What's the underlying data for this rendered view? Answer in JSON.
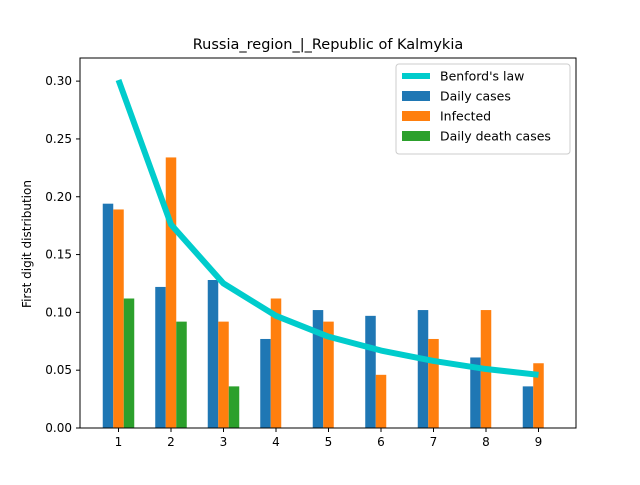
{
  "chart_data": {
    "type": "bar",
    "title": "Russia_region_|_Republic of Kalmykia",
    "xlabel": "",
    "ylabel": "First digit distribution",
    "categories": [
      "1",
      "2",
      "3",
      "4",
      "5",
      "6",
      "7",
      "8",
      "9"
    ],
    "ylim": [
      0,
      0.32
    ],
    "yticks": [
      "0.00",
      "0.05",
      "0.10",
      "0.15",
      "0.20",
      "0.25",
      "0.30"
    ],
    "grid": false,
    "legend_position": "top-right",
    "benford": {
      "name": "Benford's law",
      "type": "line",
      "color": "#00cccc",
      "values": [
        0.301,
        0.176,
        0.125,
        0.097,
        0.079,
        0.067,
        0.058,
        0.051,
        0.046
      ]
    },
    "series": [
      {
        "name": "Daily cases",
        "color": "#1f77b4",
        "values": [
          0.194,
          0.122,
          0.128,
          0.077,
          0.102,
          0.097,
          0.102,
          0.061,
          0.036
        ]
      },
      {
        "name": "Infected",
        "color": "#ff7f0e",
        "values": [
          0.189,
          0.234,
          0.092,
          0.112,
          0.092,
          0.046,
          0.077,
          0.102,
          0.056
        ]
      },
      {
        "name": "Daily death cases",
        "color": "#2ca02c",
        "values": [
          0.112,
          0.092,
          0.036,
          0,
          0,
          0,
          0,
          0,
          0
        ]
      }
    ]
  }
}
